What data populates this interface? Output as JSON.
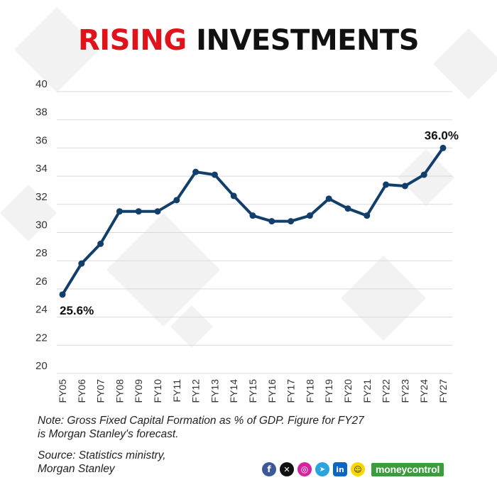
{
  "header": {
    "title_accent": "RISING",
    "title_rest": "INVESTMENTS"
  },
  "chart_data": {
    "type": "line",
    "title": "RISING INVESTMENTS",
    "xlabel": "",
    "ylabel": "",
    "ylim": [
      20,
      40
    ],
    "yticks": [
      20,
      22,
      24,
      26,
      28,
      30,
      32,
      34,
      36,
      38,
      40
    ],
    "grid": true,
    "categories": [
      "FY05",
      "FY06",
      "FY07",
      "FY08",
      "FY09",
      "FY10",
      "FY11",
      "FY12",
      "FY13",
      "FY14",
      "FY15",
      "FY16",
      "FY17",
      "FY18",
      "FY19",
      "FY20",
      "FY21",
      "FY22",
      "FY23",
      "FY24",
      "FY27"
    ],
    "series": [
      {
        "color": "#123e6b",
        "values": [
          25.6,
          27.8,
          29.2,
          31.5,
          31.5,
          31.5,
          32.3,
          34.3,
          34.1,
          32.6,
          31.2,
          30.8,
          30.8,
          31.2,
          32.4,
          31.7,
          31.2,
          33.4,
          33.3,
          34.1,
          36.0
        ]
      }
    ],
    "annotations": [
      {
        "category": "FY05",
        "text": "25.6%"
      },
      {
        "category": "FY27",
        "text": "36.0%"
      }
    ]
  },
  "footer": {
    "note_line1": "Note: Gross Fixed Capital Formation as % of GDP. Figure for FY27",
    "note_line2": "is Morgan Stanley's forecast.",
    "source_line1": "Source: Statistics ministry,",
    "source_line2": "Morgan Stanley",
    "social_icons": [
      "facebook-icon",
      "x-icon",
      "instagram-icon",
      "telegram-icon",
      "linkedin-icon",
      "snapchat-icon"
    ],
    "brand": "moneycontrol",
    "brand_color": "#3c9b3c"
  }
}
